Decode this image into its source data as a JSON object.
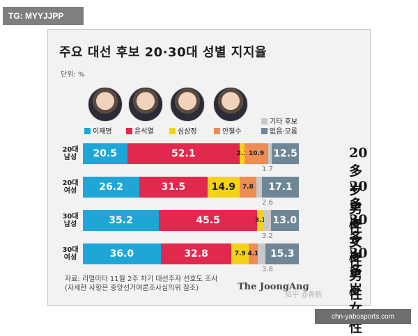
{
  "badge": "TG: MYYJJPP",
  "domain_text": "chn-yabosports.com",
  "chart_data": {
    "type": "bar",
    "title": "주요 대선 후보 20·30대 성별 지지율",
    "unit": "단위: %",
    "categories": [
      "20대 남성",
      "20대 여성",
      "30대 남성",
      "30대 여성"
    ],
    "category_lines": [
      [
        "20대",
        "남성"
      ],
      [
        "20대",
        "여성"
      ],
      [
        "30대",
        "남성"
      ],
      [
        "30대",
        "여성"
      ]
    ],
    "series": [
      {
        "name": "이재명",
        "color": "#1fa6d7",
        "values": [
          20.5,
          26.2,
          35.2,
          36.0
        ]
      },
      {
        "name": "윤석열",
        "color": "#e1284d",
        "values": [
          52.1,
          31.5,
          45.5,
          32.8
        ]
      },
      {
        "name": "심상정",
        "color": "#f5d21a",
        "values": [
          2.3,
          14.9,
          3.1,
          7.9
        ]
      },
      {
        "name": "안철수",
        "color": "#ed8c55",
        "values": [
          10.9,
          7.8,
          0.0,
          4.1
        ]
      },
      {
        "name": "기타 후보",
        "color": "#c8c8c8",
        "values": [
          1.7,
          2.6,
          3.2,
          3.8
        ]
      },
      {
        "name": "없음·모름",
        "color": "#6f8696",
        "values": [
          12.5,
          17.1,
          13.0,
          15.3
        ]
      }
    ],
    "segment_labels": [
      [
        "20.5",
        "52.1",
        "2.3",
        "10.9",
        "",
        "12.5"
      ],
      [
        "26.2",
        "31.5",
        "14.9",
        "7.8",
        "",
        "17.1"
      ],
      [
        "35.2",
        "45.5",
        "3.1",
        "",
        "",
        "13.0"
      ],
      [
        "36.0",
        "32.8",
        "7.9",
        "4.1",
        "",
        "15.3"
      ]
    ],
    "minor_labels": [
      "1.7",
      "2.6",
      "3.2",
      "3.8"
    ],
    "outside_labels": [
      "20多岁男性",
      "20多岁女性",
      "30多岁男性",
      "30多岁女性"
    ],
    "source_lines": [
      "자료: 리얼미터 11월 2주 차기 대선주자 선호도 조사",
      "(자세한 사항은 중앙선거여론조사심의위 참조)"
    ],
    "logo": "The JoongAng",
    "watermark": "知乎 @青鹤"
  }
}
